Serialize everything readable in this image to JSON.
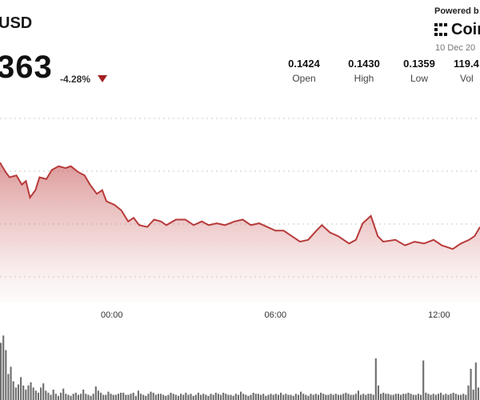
{
  "header": {
    "pair": "USD",
    "price": "363",
    "change": "-4.28%",
    "icon": "triangle-down-icon",
    "colors": {
      "down": "#a32020",
      "line": "#b83a3a"
    }
  },
  "stats": [
    {
      "value": "0.1424",
      "label": "Open"
    },
    {
      "value": "0.1430",
      "label": "High"
    },
    {
      "value": "0.1359",
      "label": "Low"
    },
    {
      "value": "119.4",
      "label": "Vol"
    }
  ],
  "branding": {
    "powered_by": "Powered b",
    "logo_icon": "coindesk-logo-icon",
    "name": "Coin",
    "date": "10 Dec 20"
  },
  "chart_data": {
    "type": "area",
    "time_ticks": [
      {
        "label": "00:00",
        "hours": 0
      },
      {
        "label": "06:00",
        "hours": 6
      },
      {
        "label": "12:00",
        "hours": 12
      }
    ],
    "ylim": [
      0.1345,
      0.1445
    ],
    "hours_range": [
      -4.1,
      13.5
    ],
    "grid": true,
    "price_series": [
      {
        "h": -4.1,
        "p": 0.1421
      },
      {
        "h": -3.9,
        "p": 0.1416
      },
      {
        "h": -3.75,
        "p": 0.1413
      },
      {
        "h": -3.5,
        "p": 0.1414
      },
      {
        "h": -3.3,
        "p": 0.1409
      },
      {
        "h": -3.15,
        "p": 0.1411
      },
      {
        "h": -3.0,
        "p": 0.1402
      },
      {
        "h": -2.8,
        "p": 0.1406
      },
      {
        "h": -2.65,
        "p": 0.1413
      },
      {
        "h": -2.4,
        "p": 0.1412
      },
      {
        "h": -2.2,
        "p": 0.1417
      },
      {
        "h": -1.95,
        "p": 0.1419
      },
      {
        "h": -1.7,
        "p": 0.1418
      },
      {
        "h": -1.5,
        "p": 0.1419
      },
      {
        "h": -1.25,
        "p": 0.1416
      },
      {
        "h": -1.0,
        "p": 0.1414
      },
      {
        "h": -0.8,
        "p": 0.1409
      },
      {
        "h": -0.55,
        "p": 0.1404
      },
      {
        "h": -0.35,
        "p": 0.1406
      },
      {
        "h": -0.2,
        "p": 0.14
      },
      {
        "h": 0.1,
        "p": 0.1398
      },
      {
        "h": 0.35,
        "p": 0.1395
      },
      {
        "h": 0.6,
        "p": 0.1389
      },
      {
        "h": 0.8,
        "p": 0.1391
      },
      {
        "h": 1.0,
        "p": 0.1387
      },
      {
        "h": 1.3,
        "p": 0.1386
      },
      {
        "h": 1.55,
        "p": 0.139
      },
      {
        "h": 1.8,
        "p": 0.1389
      },
      {
        "h": 2.0,
        "p": 0.1387
      },
      {
        "h": 2.35,
        "p": 0.139
      },
      {
        "h": 2.7,
        "p": 0.139
      },
      {
        "h": 3.0,
        "p": 0.1387
      },
      {
        "h": 3.3,
        "p": 0.1389
      },
      {
        "h": 3.55,
        "p": 0.1387
      },
      {
        "h": 3.85,
        "p": 0.1388
      },
      {
        "h": 4.15,
        "p": 0.1387
      },
      {
        "h": 4.5,
        "p": 0.1389
      },
      {
        "h": 4.8,
        "p": 0.139
      },
      {
        "h": 5.1,
        "p": 0.1387
      },
      {
        "h": 5.4,
        "p": 0.1388
      },
      {
        "h": 5.7,
        "p": 0.1386
      },
      {
        "h": 6.0,
        "p": 0.1384
      },
      {
        "h": 6.3,
        "p": 0.1384
      },
      {
        "h": 6.6,
        "p": 0.1381
      },
      {
        "h": 6.9,
        "p": 0.1378
      },
      {
        "h": 7.2,
        "p": 0.1379
      },
      {
        "h": 7.5,
        "p": 0.1384
      },
      {
        "h": 7.7,
        "p": 0.1387
      },
      {
        "h": 8.0,
        "p": 0.1383
      },
      {
        "h": 8.3,
        "p": 0.1381
      },
      {
        "h": 8.7,
        "p": 0.1377
      },
      {
        "h": 8.95,
        "p": 0.1379
      },
      {
        "h": 9.2,
        "p": 0.1388
      },
      {
        "h": 9.5,
        "p": 0.1392
      },
      {
        "h": 9.75,
        "p": 0.1381
      },
      {
        "h": 9.95,
        "p": 0.1378
      },
      {
        "h": 10.4,
        "p": 0.1379
      },
      {
        "h": 10.75,
        "p": 0.1376
      },
      {
        "h": 11.1,
        "p": 0.1378
      },
      {
        "h": 11.45,
        "p": 0.1377
      },
      {
        "h": 11.8,
        "p": 0.1379
      },
      {
        "h": 12.1,
        "p": 0.1376
      },
      {
        "h": 12.5,
        "p": 0.1374
      },
      {
        "h": 12.8,
        "p": 0.1377
      },
      {
        "h": 13.1,
        "p": 0.1379
      },
      {
        "h": 13.3,
        "p": 0.1381
      },
      {
        "h": 13.5,
        "p": 0.1386
      }
    ],
    "volume_relative": [
      0.55,
      0.62,
      0.48,
      0.25,
      0.32,
      0.18,
      0.12,
      0.15,
      0.22,
      0.14,
      0.1,
      0.14,
      0.17,
      0.12,
      0.09,
      0.07,
      0.12,
      0.16,
      0.09,
      0.07,
      0.05,
      0.1,
      0.06,
      0.04,
      0.07,
      0.11,
      0.06,
      0.05,
      0.04,
      0.06,
      0.07,
      0.05,
      0.06,
      0.1,
      0.06,
      0.05,
      0.04,
      0.06,
      0.13,
      0.09,
      0.07,
      0.05,
      0.05,
      0.08,
      0.06,
      0.05,
      0.05,
      0.06,
      0.07,
      0.07,
      0.05,
      0.05,
      0.06,
      0.07,
      0.04,
      0.09,
      0.06,
      0.05,
      0.04,
      0.06,
      0.08,
      0.07,
      0.05,
      0.06,
      0.06,
      0.05,
      0.04,
      0.05,
      0.07,
      0.06,
      0.05,
      0.04,
      0.06,
      0.05,
      0.07,
      0.05,
      0.06,
      0.04,
      0.05,
      0.07,
      0.05,
      0.06,
      0.05,
      0.04,
      0.06,
      0.05,
      0.07,
      0.06,
      0.05,
      0.07,
      0.06,
      0.05,
      0.05,
      0.04,
      0.06,
      0.05,
      0.08,
      0.06,
      0.05,
      0.04,
      0.05,
      0.07,
      0.06,
      0.06,
      0.05,
      0.06,
      0.04,
      0.05,
      0.06,
      0.05,
      0.06,
      0.05,
      0.07,
      0.05,
      0.06,
      0.05,
      0.05,
      0.04,
      0.06,
      0.05,
      0.08,
      0.06,
      0.05,
      0.04,
      0.06,
      0.05,
      0.06,
      0.05,
      0.07,
      0.06,
      0.05,
      0.05,
      0.06,
      0.05,
      0.06,
      0.05,
      0.05,
      0.06,
      0.07,
      0.06,
      0.05,
      0.05,
      0.06,
      0.09,
      0.05,
      0.06,
      0.05,
      0.06,
      0.06,
      0.05,
      0.4,
      0.14,
      0.06,
      0.07,
      0.06,
      0.06,
      0.05,
      0.05,
      0.06,
      0.06,
      0.05,
      0.06,
      0.06,
      0.07,
      0.06,
      0.05,
      0.05,
      0.06,
      0.05,
      0.38,
      0.07,
      0.06,
      0.05,
      0.06,
      0.05,
      0.06,
      0.07,
      0.05,
      0.06,
      0.05,
      0.06,
      0.07,
      0.06,
      0.05,
      0.05,
      0.06,
      0.05,
      0.14,
      0.3,
      0.1,
      0.36,
      0.12
    ]
  }
}
